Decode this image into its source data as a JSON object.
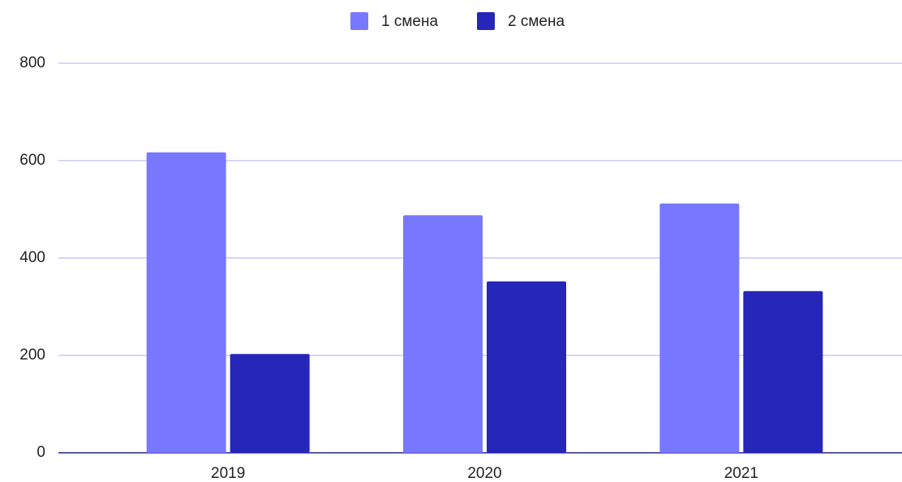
{
  "chart_data": {
    "type": "bar",
    "categories": [
      "2019",
      "2020",
      "2021"
    ],
    "series": [
      {
        "name": "1 смена",
        "color": "#7878ff",
        "values": [
          617,
          488,
          512
        ]
      },
      {
        "name": "2 смена",
        "color": "#2626b8",
        "values": [
          203,
          352,
          332
        ]
      }
    ],
    "ylim": [
      0,
      800
    ],
    "yticks": [
      0,
      200,
      400,
      600,
      800
    ],
    "grid": true,
    "legend": "top"
  }
}
